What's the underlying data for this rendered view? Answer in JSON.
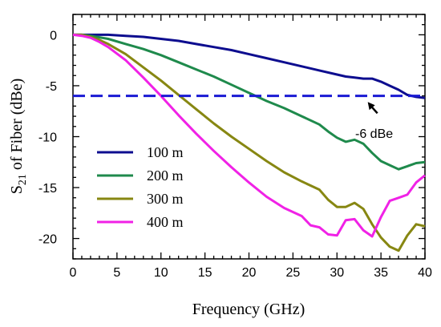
{
  "chart_data": {
    "type": "line",
    "xlabel": "Frequency (GHz)",
    "ylabel": {
      "prefix": "S",
      "sub": "21",
      "suffix": " of Fiber (dBe)"
    },
    "xlim": [
      0,
      40
    ],
    "ylim": [
      -22,
      2
    ],
    "xticks": [
      0,
      5,
      10,
      15,
      20,
      25,
      30,
      35,
      40
    ],
    "yticks": [
      0,
      -5,
      -10,
      -15,
      -20
    ],
    "xtick_labels": [
      "0",
      "5",
      "10",
      "15",
      "20",
      "25",
      "30",
      "35",
      "40"
    ],
    "ytick_labels": [
      "0",
      "-5",
      "-10",
      "-15",
      "-20"
    ],
    "grid": false,
    "legend_position": "left-middle",
    "reference_line": {
      "y": -6,
      "style": "dashed",
      "color": "#1a1ad4"
    },
    "annotation": {
      "text": "-6 dBe",
      "points_to": [
        33.5,
        -6.6
      ]
    },
    "series": [
      {
        "name": "100 m",
        "color": "#0d0d8f",
        "points": [
          [
            0,
            0
          ],
          [
            2,
            0
          ],
          [
            4,
            0
          ],
          [
            6,
            -0.1
          ],
          [
            8,
            -0.2
          ],
          [
            10,
            -0.4
          ],
          [
            12,
            -0.6
          ],
          [
            14,
            -0.9
          ],
          [
            16,
            -1.2
          ],
          [
            18,
            -1.5
          ],
          [
            20,
            -1.9
          ],
          [
            22,
            -2.3
          ],
          [
            24,
            -2.7
          ],
          [
            26,
            -3.1
          ],
          [
            28,
            -3.5
          ],
          [
            30,
            -3.9
          ],
          [
            31,
            -4.1
          ],
          [
            32,
            -4.2
          ],
          [
            33,
            -4.3
          ],
          [
            34,
            -4.3
          ],
          [
            35,
            -4.6
          ],
          [
            36,
            -5.0
          ],
          [
            37,
            -5.4
          ],
          [
            38,
            -5.9
          ],
          [
            39,
            -6.1
          ],
          [
            40,
            -6.2
          ]
        ]
      },
      {
        "name": "200 m",
        "color": "#1f8a4c",
        "points": [
          [
            0,
            0
          ],
          [
            1,
            0
          ],
          [
            2,
            -0.1
          ],
          [
            4,
            -0.4
          ],
          [
            6,
            -0.9
          ],
          [
            8,
            -1.4
          ],
          [
            10,
            -2.0
          ],
          [
            12,
            -2.7
          ],
          [
            14,
            -3.4
          ],
          [
            16,
            -4.1
          ],
          [
            18,
            -4.9
          ],
          [
            20,
            -5.7
          ],
          [
            22,
            -6.5
          ],
          [
            24,
            -7.2
          ],
          [
            26,
            -8.0
          ],
          [
            28,
            -8.8
          ],
          [
            29,
            -9.5
          ],
          [
            30,
            -10.1
          ],
          [
            31,
            -10.5
          ],
          [
            32,
            -10.3
          ],
          [
            33,
            -10.7
          ],
          [
            34,
            -11.6
          ],
          [
            35,
            -12.4
          ],
          [
            36,
            -12.8
          ],
          [
            37,
            -13.2
          ],
          [
            38,
            -12.9
          ],
          [
            39,
            -12.6
          ],
          [
            40,
            -12.5
          ]
        ]
      },
      {
        "name": "300 m",
        "color": "#878712",
        "points": [
          [
            0,
            0
          ],
          [
            1,
            0
          ],
          [
            2,
            -0.2
          ],
          [
            3,
            -0.5
          ],
          [
            4,
            -0.9
          ],
          [
            6,
            -1.9
          ],
          [
            8,
            -3.2
          ],
          [
            10,
            -4.5
          ],
          [
            12,
            -5.9
          ],
          [
            14,
            -7.3
          ],
          [
            16,
            -8.7
          ],
          [
            18,
            -10.0
          ],
          [
            20,
            -11.2
          ],
          [
            22,
            -12.4
          ],
          [
            24,
            -13.5
          ],
          [
            26,
            -14.4
          ],
          [
            28,
            -15.2
          ],
          [
            29,
            -16.2
          ],
          [
            30,
            -16.9
          ],
          [
            31,
            -16.9
          ],
          [
            32,
            -16.5
          ],
          [
            33,
            -17.1
          ],
          [
            34,
            -18.6
          ],
          [
            35,
            -19.9
          ],
          [
            36,
            -20.8
          ],
          [
            37,
            -21.2
          ],
          [
            38,
            -19.7
          ],
          [
            39,
            -18.6
          ],
          [
            40,
            -18.8
          ]
        ]
      },
      {
        "name": "400 m",
        "color": "#f022e6",
        "points": [
          [
            0,
            0
          ],
          [
            1,
            -0.1
          ],
          [
            2,
            -0.3
          ],
          [
            3,
            -0.7
          ],
          [
            4,
            -1.2
          ],
          [
            6,
            -2.5
          ],
          [
            8,
            -4.2
          ],
          [
            10,
            -6.0
          ],
          [
            12,
            -7.9
          ],
          [
            14,
            -9.7
          ],
          [
            16,
            -11.4
          ],
          [
            18,
            -13.0
          ],
          [
            20,
            -14.5
          ],
          [
            22,
            -15.9
          ],
          [
            24,
            -17.0
          ],
          [
            26,
            -17.8
          ],
          [
            27,
            -18.7
          ],
          [
            28,
            -18.9
          ],
          [
            29,
            -19.6
          ],
          [
            30,
            -19.7
          ],
          [
            31,
            -18.2
          ],
          [
            32,
            -18.1
          ],
          [
            33,
            -19.2
          ],
          [
            34,
            -19.8
          ],
          [
            35,
            -17.9
          ],
          [
            36,
            -16.3
          ],
          [
            37,
            -16.0
          ],
          [
            38,
            -15.7
          ],
          [
            39,
            -14.5
          ],
          [
            40,
            -13.8
          ]
        ]
      }
    ]
  }
}
